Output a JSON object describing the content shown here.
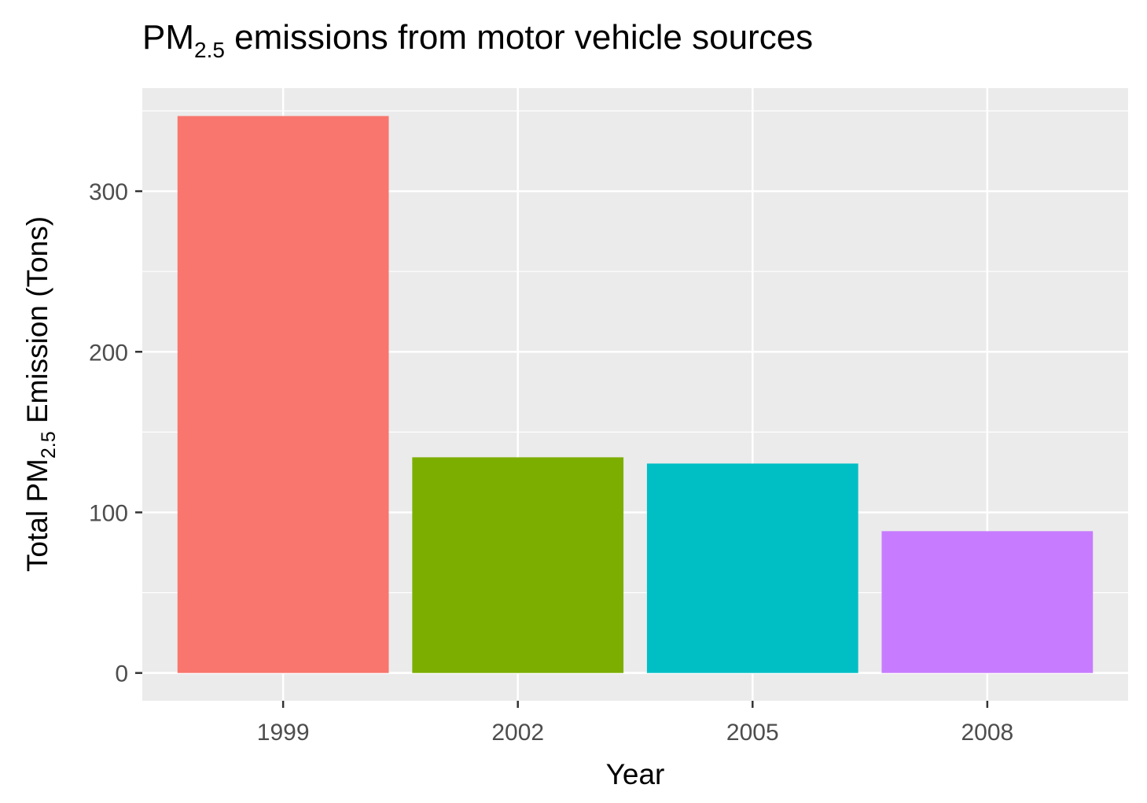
{
  "chart_data": {
    "type": "bar",
    "title": {
      "main": "PM",
      "subscript": "2.5",
      "rest": " emissions from motor vehicle sources"
    },
    "xlabel": "Year",
    "ylabel": {
      "main": "Total PM",
      "subscript": "2.5",
      "rest": " Emission (Tons)"
    },
    "categories": [
      "1999",
      "2002",
      "2005",
      "2008"
    ],
    "values": [
      346.8,
      134.3,
      130.4,
      88.3
    ],
    "colors": [
      "#F8766D",
      "#7CAE00",
      "#00BFC4",
      "#C77CFF"
    ],
    "yticks": [
      0,
      100,
      200,
      300
    ],
    "ylim": [
      -17.3,
      364.2
    ],
    "grid": true,
    "panel_background": "#EBEBEB",
    "grid_color": "#FFFFFF",
    "legend": "none"
  }
}
